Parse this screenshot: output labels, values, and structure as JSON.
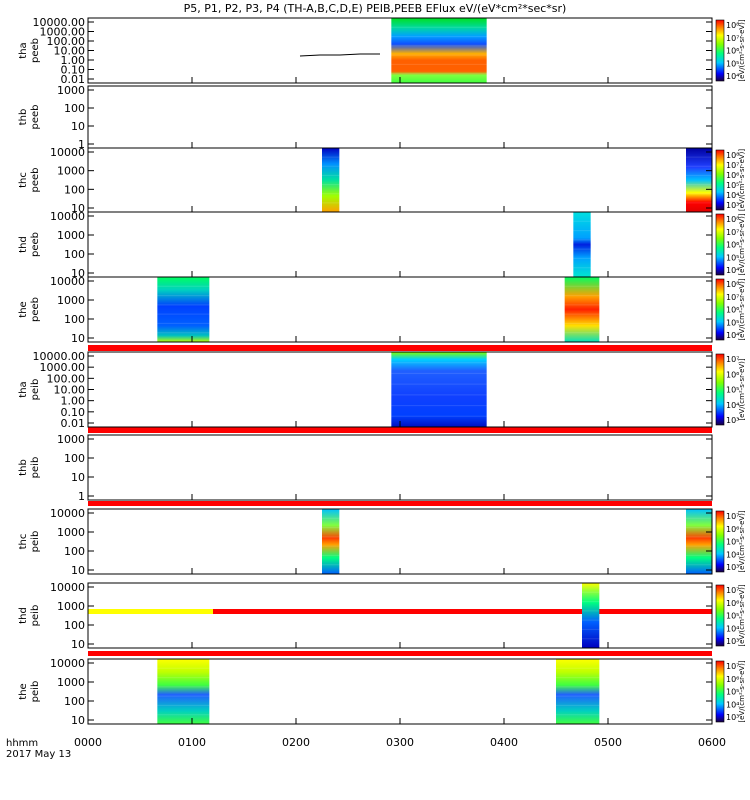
{
  "title": "P5, P1, P2, P3, P4 (TH-A,B,C,D,E) PEIB,PEEB EFlux eV/(eV*cm²*sec*sr)",
  "bottom_label": {
    "line1": "hhmm",
    "line2": "2017 May 13"
  },
  "colorbar_label": "[eV/(cm²-s-sr-eV)]",
  "chart_data": {
    "type": "heatmap",
    "x_ticks": [
      "0000",
      "0100",
      "0200",
      "0300",
      "0400",
      "0500",
      "0600"
    ],
    "xlim": [
      "0000",
      "0600"
    ],
    "panels": [
      {
        "ylabel1": "tha",
        "ylabel2": "peeb",
        "ylim": [
          0.01,
          30000
        ],
        "ticks": [
          "10000.00",
          "1000.00",
          "100.00",
          "10.00",
          "1.00",
          "0.10",
          "0.01"
        ],
        "cbar": true,
        "cbar_ticks": [
          "10⁸",
          "10⁷",
          "10⁶",
          "10⁵",
          "10⁴"
        ],
        "data_blocks": [
          {
            "t_start": "0255",
            "t_end": "0350",
            "style": "peeb-flat"
          }
        ]
      },
      {
        "ylabel1": "thb",
        "ylabel2": "peeb",
        "ylim": [
          1,
          3000
        ],
        "ticks": [
          "1000",
          "100",
          "10",
          "1"
        ],
        "cbar": false,
        "data_blocks": []
      },
      {
        "ylabel1": "thc",
        "ylabel2": "peeb",
        "ylim": [
          5,
          30000
        ],
        "ticks": [
          "10000",
          "1000",
          "100",
          "10"
        ],
        "cbar": true,
        "cbar_ticks": [
          "10⁸",
          "10⁷",
          "10⁶",
          "10⁵",
          "10⁴",
          "10³"
        ],
        "data_blocks": [
          {
            "t_start": "0215",
            "t_end": "0225",
            "style": "peeb-green"
          },
          {
            "t_start": "0545",
            "t_end": "0600",
            "style": "peeb-blue-hot"
          }
        ]
      },
      {
        "ylabel1": "thd",
        "ylabel2": "peeb",
        "ylim": [
          5,
          30000
        ],
        "ticks": [
          "10000",
          "1000",
          "100",
          "10"
        ],
        "cbar": true,
        "cbar_ticks": [
          "10⁸",
          "10⁷",
          "10⁶",
          "10⁵",
          "10⁴"
        ],
        "data_blocks": [
          {
            "t_start": "0440",
            "t_end": "0450",
            "style": "peeb-cyan"
          }
        ]
      },
      {
        "ylabel1": "the",
        "ylabel2": "peeb",
        "ylim": [
          5,
          30000
        ],
        "ticks": [
          "10000",
          "1000",
          "100",
          "10"
        ],
        "cbar": true,
        "cbar_ticks": [
          "10⁸",
          "10⁷",
          "10⁶",
          "10⁵",
          "10⁴"
        ],
        "data_blocks": [
          {
            "t_start": "0040",
            "t_end": "0110",
            "style": "peeb-blue"
          },
          {
            "t_start": "0435",
            "t_end": "0455",
            "style": "peeb-hot"
          }
        ]
      },
      {
        "ylabel1": "tha",
        "ylabel2": "peib",
        "ylim": [
          0.01,
          30000
        ],
        "ticks": [
          "10000.00",
          "1000.00",
          "100.00",
          "10.00",
          "1.00",
          "0.10",
          "0.01"
        ],
        "cbar": true,
        "cbar_ticks": [
          "10⁷",
          "10⁶",
          "10⁵",
          "10⁴",
          "10³"
        ],
        "data_blocks": [
          {
            "t_start": "0255",
            "t_end": "0350",
            "style": "peib-blue"
          }
        ]
      },
      {
        "ylabel1": "thb",
        "ylabel2": "peib",
        "ylim": [
          0.3,
          3000
        ],
        "ticks": [
          "1000",
          "100",
          "10",
          "1"
        ],
        "cbar": false,
        "data_blocks": []
      },
      {
        "ylabel1": "thc",
        "ylabel2": "peib",
        "ylim": [
          5,
          30000
        ],
        "ticks": [
          "10000",
          "1000",
          "100",
          "10"
        ],
        "cbar": true,
        "cbar_ticks": [
          "10⁷",
          "10⁶",
          "10⁵",
          "10⁴",
          "10³"
        ],
        "data_blocks": [
          {
            "t_start": "0215",
            "t_end": "0225",
            "style": "peib-band"
          },
          {
            "t_start": "0545",
            "t_end": "0600",
            "style": "peib-band"
          }
        ]
      },
      {
        "ylabel1": "thd",
        "ylabel2": "peib",
        "ylim": [
          5,
          30000
        ],
        "ticks": [
          "10000",
          "1000",
          "100",
          "10"
        ],
        "cbar": true,
        "cbar_ticks": [
          "10⁷",
          "10⁶",
          "10⁵",
          "10⁴",
          "10³"
        ],
        "data_blocks": [
          {
            "t_start": "0445",
            "t_end": "0455",
            "style": "peib-thin"
          }
        ]
      },
      {
        "ylabel1": "the",
        "ylabel2": "peib",
        "ylim": [
          5,
          30000
        ],
        "ticks": [
          "10000",
          "1000",
          "100",
          "10"
        ],
        "cbar": true,
        "cbar_ticks": [
          "10⁷",
          "10⁶",
          "10⁵",
          "10⁴",
          "10³"
        ],
        "data_blocks": [
          {
            "t_start": "0040",
            "t_end": "0110",
            "style": "peib-wide"
          },
          {
            "t_start": "0430",
            "t_end": "0455",
            "style": "peib-wide"
          }
        ]
      }
    ]
  }
}
